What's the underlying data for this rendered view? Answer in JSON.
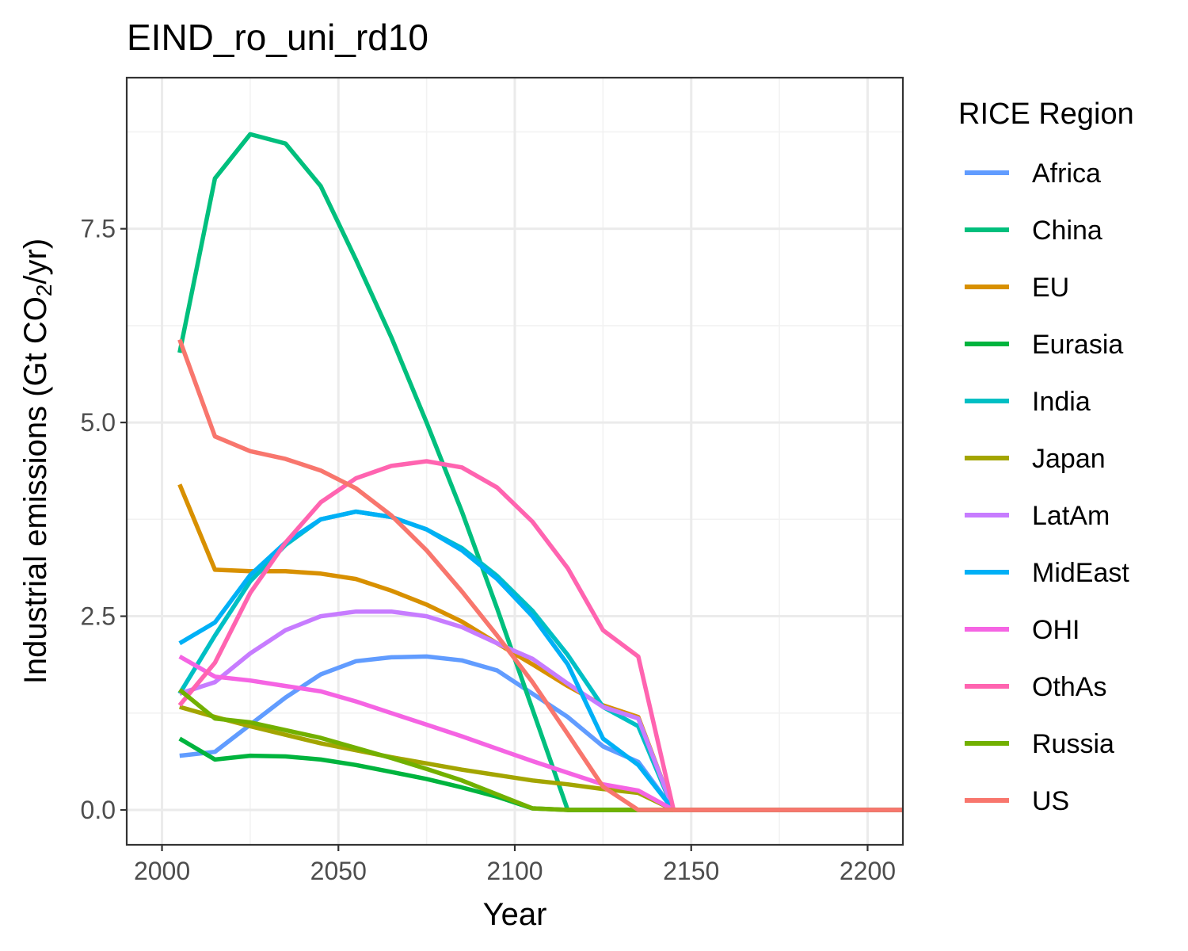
{
  "chart_data": {
    "type": "line",
    "title": "EIND_ro_uni_rd10",
    "xlabel": "Year",
    "ylabel_parts": [
      "Industrial emissions (Gt CO",
      "2",
      "/yr)"
    ],
    "xlim": [
      1990,
      2210
    ],
    "ylim": [
      -0.45,
      9.45
    ],
    "x_ticks": [
      2000,
      2050,
      2100,
      2150,
      2200
    ],
    "y_ticks": [
      0.0,
      2.5,
      5.0,
      7.5
    ],
    "y_tick_labels": [
      "0.0",
      "2.5",
      "5.0",
      "7.5"
    ],
    "grid": true,
    "legend": {
      "title": "RICE Region",
      "position": "right"
    },
    "x": [
      2005,
      2015,
      2025,
      2035,
      2045,
      2055,
      2065,
      2075,
      2085,
      2095,
      2105,
      2115,
      2125,
      2135,
      2145,
      2155,
      2165,
      2175,
      2185,
      2195,
      2205,
      2215
    ],
    "series": [
      {
        "name": "Africa",
        "color": "#619CFF",
        "values": [
          0.7,
          0.75,
          1.1,
          1.45,
          1.75,
          1.92,
          1.97,
          1.98,
          1.93,
          1.8,
          1.5,
          1.2,
          0.82,
          0.62,
          0,
          0,
          0,
          0,
          0,
          0,
          0,
          0
        ]
      },
      {
        "name": "China",
        "color": "#00BF7D",
        "values": [
          5.9,
          8.15,
          8.72,
          8.6,
          8.05,
          7.1,
          6.1,
          5.0,
          3.85,
          2.6,
          1.3,
          0,
          0,
          0,
          0,
          0,
          0,
          0,
          0,
          0,
          0,
          0
        ]
      },
      {
        "name": "EU",
        "color": "#D89000",
        "values": [
          4.2,
          3.1,
          3.08,
          3.08,
          3.05,
          2.98,
          2.83,
          2.65,
          2.43,
          2.15,
          1.88,
          1.6,
          1.35,
          1.2,
          0,
          0,
          0,
          0,
          0,
          0,
          0,
          0
        ]
      },
      {
        "name": "Eurasia",
        "color": "#00B43E",
        "values": [
          0.92,
          0.65,
          0.7,
          0.69,
          0.65,
          0.58,
          0.49,
          0.4,
          0.29,
          0.17,
          0.02,
          0,
          0,
          0,
          0,
          0,
          0,
          0,
          0,
          0,
          0,
          0
        ]
      },
      {
        "name": "India",
        "color": "#00BFC4",
        "values": [
          1.5,
          2.25,
          2.95,
          3.42,
          3.75,
          3.85,
          3.78,
          3.62,
          3.38,
          3.02,
          2.57,
          2.0,
          1.33,
          1.08,
          0,
          0,
          0,
          0,
          0,
          0,
          0,
          0
        ]
      },
      {
        "name": "Japan",
        "color": "#A3A500",
        "values": [
          1.33,
          1.2,
          1.08,
          0.97,
          0.86,
          0.77,
          0.68,
          0.6,
          0.52,
          0.45,
          0.38,
          0.33,
          0.27,
          0.22,
          0,
          0,
          0,
          0,
          0,
          0,
          0,
          0
        ]
      },
      {
        "name": "LatAm",
        "color": "#C77CFF",
        "values": [
          1.5,
          1.65,
          2.02,
          2.32,
          2.5,
          2.56,
          2.56,
          2.5,
          2.36,
          2.15,
          1.95,
          1.63,
          1.33,
          1.18,
          0,
          0,
          0,
          0,
          0,
          0,
          0,
          0
        ]
      },
      {
        "name": "MidEast",
        "color": "#00B0F6",
        "values": [
          2.15,
          2.42,
          3.03,
          3.45,
          3.75,
          3.85,
          3.78,
          3.62,
          3.35,
          2.98,
          2.5,
          1.88,
          0.92,
          0.58,
          0,
          0,
          0,
          0,
          0,
          0,
          0,
          0
        ]
      },
      {
        "name": "OHI",
        "color": "#F564E3",
        "values": [
          1.98,
          1.72,
          1.67,
          1.6,
          1.53,
          1.4,
          1.25,
          1.1,
          0.95,
          0.79,
          0.63,
          0.48,
          0.33,
          0.25,
          0,
          0,
          0,
          0,
          0,
          0,
          0,
          0
        ]
      },
      {
        "name": "OthAs",
        "color": "#FF64B0",
        "values": [
          1.35,
          1.9,
          2.8,
          3.45,
          3.97,
          4.28,
          4.44,
          4.5,
          4.42,
          4.16,
          3.72,
          3.12,
          2.32,
          1.98,
          0,
          0,
          0,
          0,
          0,
          0,
          0,
          0
        ]
      },
      {
        "name": "Russia",
        "color": "#72B000",
        "values": [
          1.55,
          1.18,
          1.13,
          1.03,
          0.93,
          0.8,
          0.67,
          0.53,
          0.38,
          0.2,
          0.02,
          0,
          0,
          0,
          0,
          0,
          0,
          0,
          0,
          0,
          0,
          0
        ]
      },
      {
        "name": "US",
        "color": "#F8766D",
        "values": [
          6.07,
          4.82,
          4.63,
          4.53,
          4.38,
          4.15,
          3.8,
          3.35,
          2.82,
          2.25,
          1.65,
          0.98,
          0.3,
          0,
          0,
          0,
          0,
          0,
          0,
          0,
          0,
          0
        ]
      }
    ]
  }
}
